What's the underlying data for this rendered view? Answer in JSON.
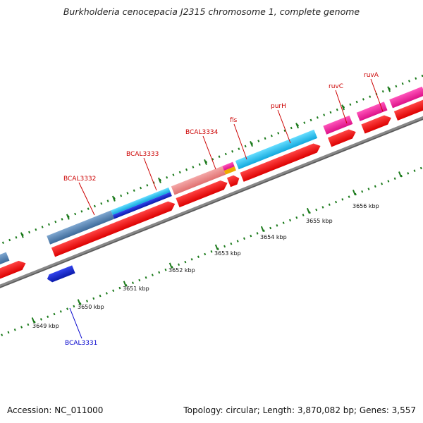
{
  "title": "Burkholderia cenocepacia J2315 chromosome 1, complete genome",
  "footer": {
    "accession": "Accession: NC_011000",
    "summary": "Topology: circular; Length: 3,870,082 bp; Genes: 3,557"
  },
  "kbp_labels": [
    "3649 kbp",
    "3650 kbp",
    "3651 kbp",
    "3652 kbp",
    "3653 kbp",
    "3654 kbp",
    "3655 kbp",
    "3656 kbp"
  ],
  "gene_labels_forward": [
    "BCAL3332",
    "BCAL3333",
    "BCAL3334",
    "fis",
    "purH",
    "ruvC",
    "ruvA"
  ],
  "gene_labels_reverse": [
    "BCAL3331"
  ],
  "colors": {
    "label_forward": "#cc0000",
    "label_reverse": "#0000cc",
    "tick": "#1b7a1b",
    "backbone": "#888888",
    "cds": "#ee1111",
    "steelblue": "#4f81b4",
    "cyan": "#22bbee",
    "pink": "#ee2299",
    "salmon": "#ee8888",
    "blue": "#1122cc",
    "orange": "#eeaa00"
  }
}
